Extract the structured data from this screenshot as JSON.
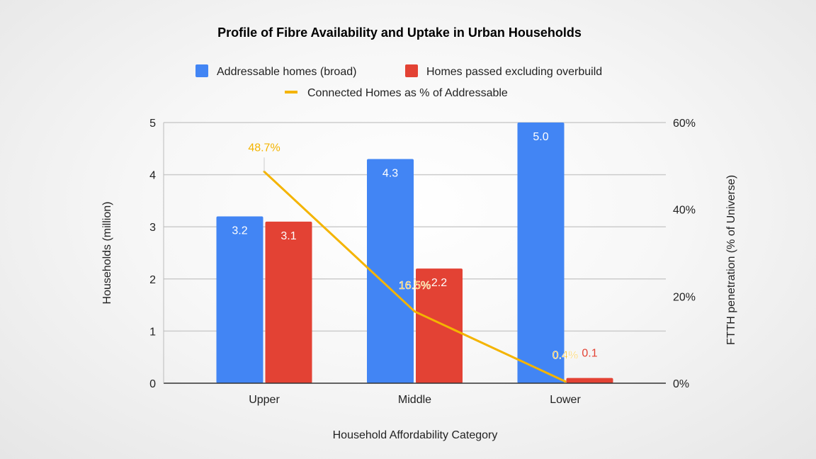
{
  "chart_data": {
    "type": "bar",
    "title": "Profile of Fibre Availability and Uptake in Urban Households",
    "xlabel": "Household Affordability Category",
    "ylabel": "Households (million)",
    "y2label": "FTTH penetration (% of Universe)",
    "categories": [
      "Upper",
      "Middle",
      "Lower"
    ],
    "ylim": [
      0,
      5
    ],
    "y_ticks": [
      "0",
      "1",
      "2",
      "3",
      "4",
      "5"
    ],
    "y2lim": [
      0,
      60
    ],
    "y2_ticks": [
      "0%",
      "20%",
      "40%",
      "60%"
    ],
    "grid": true,
    "legend_position": "top",
    "series": [
      {
        "name": "Addressable homes (broad)",
        "type": "bar",
        "axis": "left",
        "color": "#4285f4",
        "values": [
          3.2,
          4.3,
          5.0
        ],
        "labels": [
          "3.2",
          "4.3",
          "5.0"
        ]
      },
      {
        "name": "Homes passed excluding overbuild",
        "type": "bar",
        "axis": "left",
        "color": "#e34234",
        "values": [
          3.1,
          2.2,
          0.1
        ],
        "labels": [
          "3.1",
          "2.2",
          "0.1"
        ]
      },
      {
        "name": "Connected Homes as % of Addressable",
        "type": "line",
        "axis": "right",
        "color": "#f4b400",
        "values": [
          48.7,
          16.5,
          0.4
        ],
        "labels": [
          "48.7%",
          "16.5%",
          "0.4%"
        ]
      }
    ]
  }
}
